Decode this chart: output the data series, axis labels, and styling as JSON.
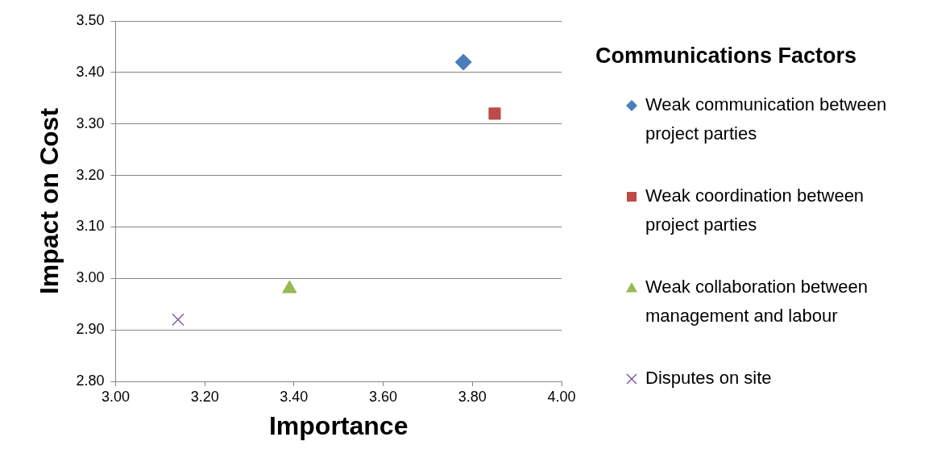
{
  "chart_data": {
    "type": "scatter",
    "xlabel": "Importance",
    "ylabel": "Impact on Cost",
    "legend_title": "Communications Factors",
    "legend": "right",
    "grid": "y",
    "xlim": [
      3.0,
      4.0
    ],
    "xticks": [
      {
        "value": 3.0,
        "label": "3.00"
      },
      {
        "value": 3.2,
        "label": "3.20"
      },
      {
        "value": 3.4,
        "label": "3.40"
      },
      {
        "value": 3.6,
        "label": "3.60"
      },
      {
        "value": 3.8,
        "label": "3.80"
      },
      {
        "value": 4.0,
        "label": "4.00"
      }
    ],
    "ylim": [
      2.8,
      3.5
    ],
    "yticks": [
      {
        "value": 2.8,
        "label": "2.80"
      },
      {
        "value": 2.9,
        "label": "2.90"
      },
      {
        "value": 3.0,
        "label": "3.00"
      },
      {
        "value": 3.1,
        "label": "3.10"
      },
      {
        "value": 3.2,
        "label": "3.20"
      },
      {
        "value": 3.3,
        "label": "3.30"
      },
      {
        "value": 3.4,
        "label": "3.40"
      },
      {
        "value": 3.5,
        "label": "3.50"
      }
    ],
    "series": [
      {
        "name": "Weak communication between project parties",
        "color": "#4a7ebb",
        "marker": "diamond",
        "x": [
          3.78
        ],
        "values": [
          3.42
        ]
      },
      {
        "name": "Weak coordination between project parties",
        "color": "#be4b48",
        "marker": "square",
        "x": [
          3.85
        ],
        "values": [
          3.32
        ]
      },
      {
        "name": "Weak collaboration between management and labour",
        "color": "#98b954",
        "marker": "triangle",
        "x": [
          3.39
        ],
        "values": [
          2.98
        ]
      },
      {
        "name": "Disputes on site",
        "color": "#7d60a0",
        "marker": "cross",
        "x": [
          3.14
        ],
        "values": [
          2.92
        ]
      }
    ]
  }
}
